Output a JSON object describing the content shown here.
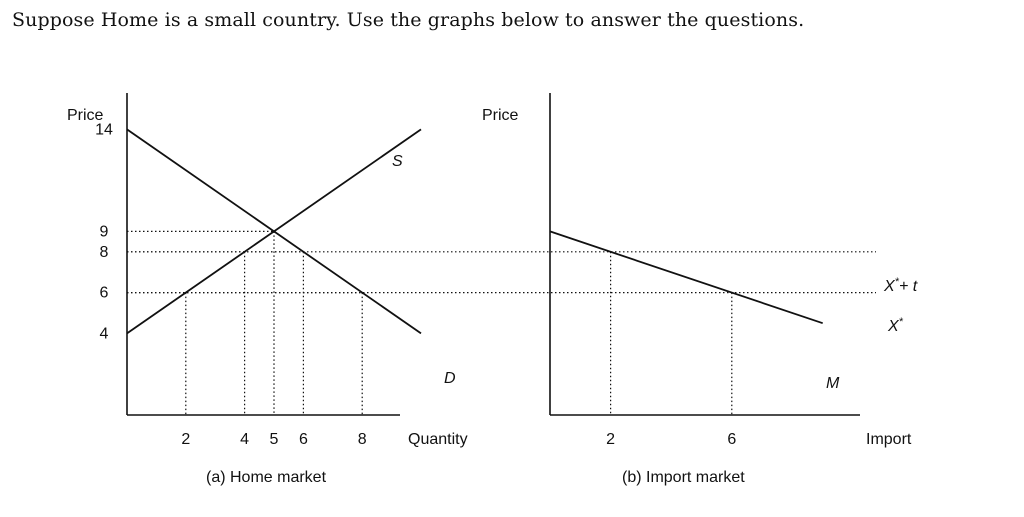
{
  "question": "Suppose Home is a small country. Use the graphs below to answer the questions.",
  "chart_data": [
    {
      "type": "line",
      "title": "",
      "caption": "(a) Home market",
      "xlabel": "Quantity",
      "ylabel": "Price",
      "x_ticks": [
        "2",
        "4",
        "5",
        "6",
        "8"
      ],
      "y_ticks": [
        "4",
        "6",
        "8",
        "9",
        "14"
      ],
      "series": [
        {
          "name": "S",
          "points": [
            [
              0,
              4
            ],
            [
              5,
              9
            ],
            [
              10,
              14
            ]
          ]
        },
        {
          "name": "D",
          "points": [
            [
              0,
              14
            ],
            [
              5,
              9
            ],
            [
              10,
              4
            ]
          ]
        }
      ]
    },
    {
      "type": "line",
      "title": "",
      "caption": "(b) Import market",
      "xlabel": "Import",
      "ylabel": "Price",
      "x_ticks": [
        "2",
        "6"
      ],
      "series": [
        {
          "name": "M",
          "points": [
            [
              0,
              9
            ],
            [
              2,
              8
            ],
            [
              6,
              6
            ],
            [
              9,
              4.5
            ]
          ]
        }
      ],
      "price_lines": [
        {
          "label_main": "X",
          "label_sup": "*",
          "label_tail": "+ t",
          "price": 8
        },
        {
          "label_main": "X",
          "label_sup": "*",
          "label_tail": "",
          "price": 6
        }
      ]
    }
  ]
}
